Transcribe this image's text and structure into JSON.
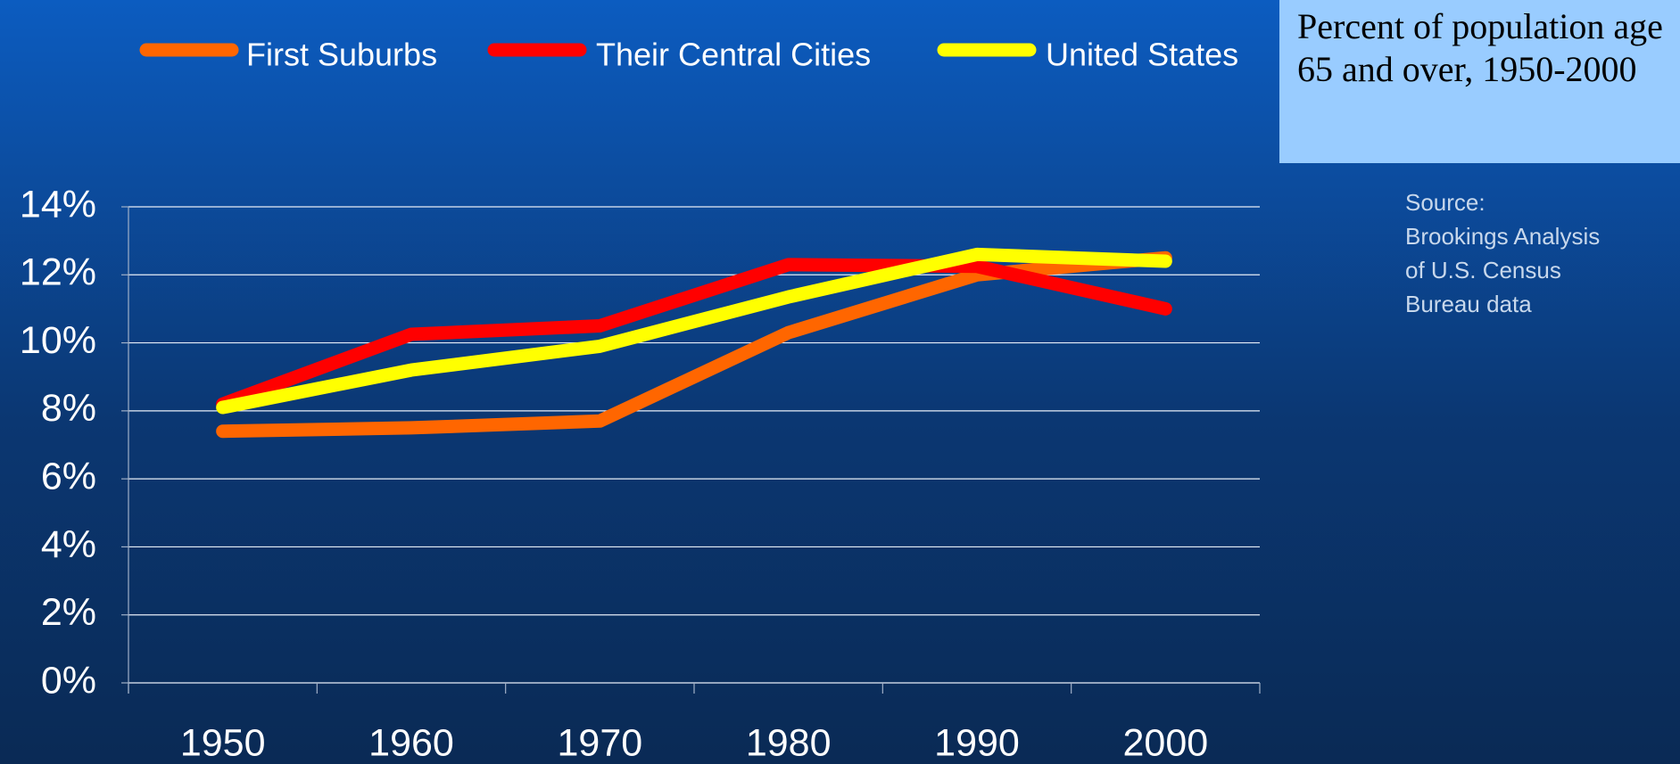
{
  "chart_data": {
    "type": "line",
    "title": "Percent of population age 65 and over, 1950-2000",
    "source": [
      "Source:",
      "Brookings Analysis",
      "of U.S. Census",
      "Bureau data"
    ],
    "categories": [
      "1950",
      "1960",
      "1970",
      "1980",
      "1990",
      "2000"
    ],
    "series": [
      {
        "name": "First Suburbs",
        "color": "#ff6600",
        "values": [
          7.4,
          7.5,
          7.7,
          10.3,
          12.0,
          12.5
        ]
      },
      {
        "name": "Their Central Cities",
        "color": "#ff0000",
        "values": [
          8.2,
          10.25,
          10.5,
          12.3,
          12.25,
          11.0
        ]
      },
      {
        "name": "United States",
        "color": "#ffff00",
        "values": [
          8.1,
          9.2,
          9.9,
          11.35,
          12.6,
          12.4
        ]
      }
    ],
    "ylim": [
      0,
      14
    ],
    "yticks": [
      {
        "value": 0,
        "label": "0%"
      },
      {
        "value": 2,
        "label": "2%"
      },
      {
        "value": 4,
        "label": "4%"
      },
      {
        "value": 6,
        "label": "6%"
      },
      {
        "value": 8,
        "label": "8%"
      },
      {
        "value": 10,
        "label": "10%"
      },
      {
        "value": 12,
        "label": "12%"
      },
      {
        "value": 14,
        "label": "14%"
      }
    ],
    "grid": true,
    "legend": "top"
  }
}
